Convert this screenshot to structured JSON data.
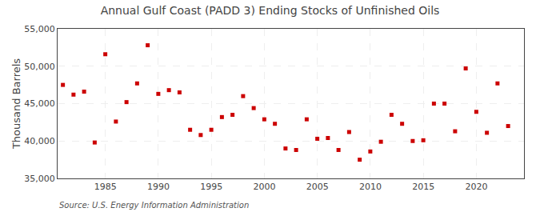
{
  "chart_data": {
    "type": "scatter",
    "title": "Annual Gulf Coast (PADD 3) Ending Stocks of Unfinished Oils",
    "ylabel": "Thousand Barrels",
    "annotations": [
      "Source: U.S. Energy Information Administration"
    ],
    "color": "#cc0000",
    "marker": "square",
    "grid": true,
    "ylim": [
      35000,
      55000
    ],
    "yticks": [
      {
        "value": 35000,
        "label": "35,000"
      },
      {
        "value": 40000,
        "label": "40,000"
      },
      {
        "value": 45000,
        "label": "45,000"
      },
      {
        "value": 50000,
        "label": "50,000"
      },
      {
        "value": 55000,
        "label": "55,000"
      }
    ],
    "xlim": [
      1980.5,
      2024.5
    ],
    "xticks": [
      1985,
      1990,
      1995,
      2000,
      2005,
      2010,
      2015,
      2020
    ],
    "x": [
      1981,
      1982,
      1983,
      1984,
      1985,
      1986,
      1987,
      1988,
      1989,
      1990,
      1991,
      1992,
      1993,
      1994,
      1995,
      1996,
      1997,
      1998,
      1999,
      2000,
      2001,
      2002,
      2003,
      2004,
      2005,
      2006,
      2007,
      2008,
      2009,
      2010,
      2011,
      2012,
      2013,
      2014,
      2015,
      2016,
      2017,
      2018,
      2019,
      2020,
      2021,
      2022,
      2023
    ],
    "values": [
      47500,
      46200,
      46600,
      39800,
      51600,
      42600,
      45200,
      47700,
      52800,
      46300,
      46800,
      46500,
      41500,
      40800,
      41500,
      43200,
      43500,
      46000,
      44400,
      42900,
      42300,
      39000,
      38800,
      42900,
      40300,
      40400,
      38800,
      41200,
      37500,
      38600,
      39900,
      43500,
      42300,
      40000,
      40100,
      45000,
      45000,
      41300,
      49700,
      43900,
      41100,
      47700,
      42000
    ]
  }
}
